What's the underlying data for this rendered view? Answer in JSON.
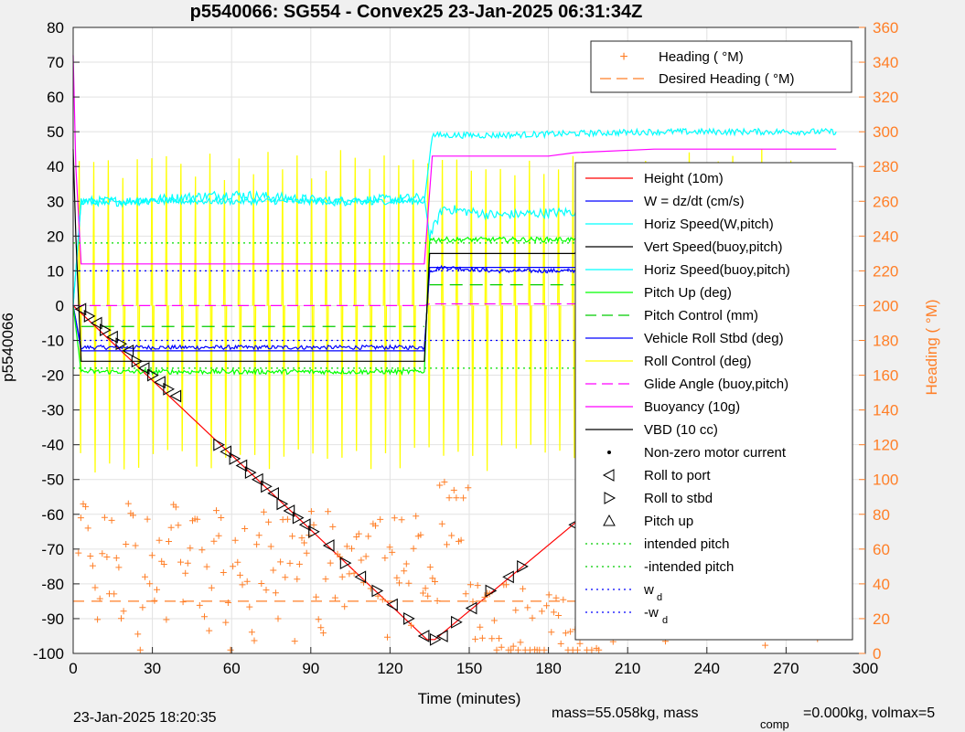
{
  "chart_data": {
    "type": "line",
    "title": "p5540066: SG554 - Convex25 23-Jan-2025 06:31:34Z",
    "xlabel": "Time (minutes)",
    "ylabel": "p5540066",
    "ylabel_right": "Heading (  °M)",
    "xlim": [
      0,
      300
    ],
    "ylim": [
      -100,
      80
    ],
    "ylim_right": [
      0,
      360
    ],
    "x_ticks": [
      0,
      30,
      60,
      90,
      120,
      150,
      180,
      210,
      240,
      270,
      300
    ],
    "y_ticks": [
      -100,
      -90,
      -80,
      -70,
      -60,
      -50,
      -40,
      -30,
      -20,
      -10,
      0,
      10,
      20,
      30,
      40,
      50,
      60,
      70,
      80
    ],
    "y_ticks_right": [
      0,
      20,
      40,
      60,
      80,
      100,
      120,
      140,
      160,
      180,
      200,
      220,
      240,
      260,
      280,
      300,
      320,
      340,
      360
    ],
    "grid": true,
    "legend_top": [
      "Heading (  °M)",
      "Desired Heading (  °M)"
    ],
    "legend_main": [
      "Height (10m)",
      "W = dz/dt (cm/s)",
      "Horiz Speed(W,pitch)",
      "Vert Speed(buoy,pitch)",
      "Horiz Speed(buoy,pitch)",
      "Pitch Up (deg)",
      "Pitch Control (mm)",
      "Vehicle Roll Stbd (deg)",
      "Roll Control (deg)",
      "Glide Angle (buoy,pitch)",
      "Buoyancy (10g)",
      "VBD (10 cc)",
      "Non-zero motor current",
      "Roll to port",
      "Roll to stbd",
      "Pitch up",
      "intended pitch",
      "-intended pitch",
      "w",
      "-w"
    ],
    "legend_sub": "d",
    "series": [
      {
        "name": "Height (10m)",
        "color": "#ff0000",
        "x": [
          0,
          134,
          137,
          289
        ],
        "y": [
          0,
          -96,
          -96,
          0
        ]
      },
      {
        "name": "W = dz/dt (cm/s)",
        "color": "#0000ff",
        "x": [
          0,
          3,
          20,
          60,
          100,
          133,
          135,
          140,
          160,
          190,
          240,
          289
        ],
        "y": [
          0,
          -12,
          -12,
          -12,
          -12,
          -12,
          10,
          11,
          10,
          10,
          10,
          10
        ]
      },
      {
        "name": "Horiz Speed(W,pitch)",
        "color": "#00ffff",
        "x": [
          0,
          3,
          20,
          60,
          100,
          133,
          135,
          140,
          160,
          190,
          240,
          289
        ],
        "y": [
          0,
          30,
          30,
          32,
          30,
          31,
          20,
          28,
          26,
          27,
          26,
          27
        ]
      },
      {
        "name": "Vert Speed(buoy,pitch)",
        "color": "#0000ff",
        "x": [
          0,
          3,
          133,
          135,
          289
        ],
        "y": [
          0,
          -13,
          -13,
          11,
          11
        ]
      },
      {
        "name": "Horiz Speed(buoy,pitch)",
        "color": "#00ffff",
        "x": [
          0,
          3,
          133,
          136,
          160,
          220,
          289
        ],
        "y": [
          0,
          30,
          30,
          49,
          49,
          50,
          50
        ]
      },
      {
        "name": "Pitch Up (deg)",
        "color": "#00ff00",
        "x": [
          0,
          3,
          133,
          135,
          289
        ],
        "y": [
          0,
          -19,
          -19,
          19,
          19
        ]
      },
      {
        "name": "Glide Angle (buoy,pitch)",
        "color": "#ff00ff",
        "x": [
          0,
          133,
          135,
          289
        ],
        "y": [
          0,
          0,
          0.5,
          0.5
        ]
      },
      {
        "name": "Buoyancy (10g)",
        "color": "#ff00ff",
        "x": [
          0,
          1,
          3,
          133,
          136,
          180,
          190,
          220,
          289
        ],
        "y": [
          72,
          40,
          12,
          12,
          43,
          43,
          44,
          45,
          45
        ]
      },
      {
        "name": "VBD (10 cc)",
        "color": "#000000",
        "x": [
          0,
          1,
          3,
          133,
          135,
          190,
          191,
          289
        ],
        "y": [
          45,
          20,
          -16,
          -16,
          15,
          15,
          17,
          17
        ]
      },
      {
        "name": "intended pitch",
        "color": "#00dd00",
        "x": [
          0,
          289
        ],
        "y": [
          18,
          18
        ]
      },
      {
        "name": "-intended pitch",
        "color": "#00dd00",
        "x": [
          0,
          289
        ],
        "y": [
          -18,
          -18
        ]
      },
      {
        "name": "w",
        "color": "#0000ff",
        "x": [
          0,
          289
        ],
        "y": [
          10,
          10
        ]
      },
      {
        "name": "-w",
        "color": "#0000ff",
        "x": [
          0,
          289
        ],
        "y": [
          -10,
          -10
        ]
      },
      {
        "name": "Desired Heading (  °M)",
        "color": "#ff7f27",
        "axis": "right",
        "x": [
          0,
          289
        ],
        "y": [
          30,
          30
        ]
      }
    ],
    "roll_markers": {
      "x": [
        3,
        6,
        9,
        12,
        15,
        18,
        21,
        24,
        27,
        30,
        33,
        36,
        39,
        55,
        58,
        61,
        64,
        67,
        70,
        73,
        76,
        79,
        82,
        85,
        88,
        91,
        97,
        103,
        109,
        115,
        121,
        127,
        133,
        137,
        140,
        145,
        151,
        158,
        165,
        170,
        190,
        194,
        197,
        200,
        203,
        206,
        222,
        225,
        228,
        231,
        234,
        237,
        240,
        243,
        246,
        249,
        252,
        255,
        258,
        261,
        264,
        267,
        270,
        273,
        276,
        279,
        282,
        285,
        288
      ],
      "y": [
        -1,
        -3,
        -5,
        -7,
        -9,
        -11,
        -13,
        -16,
        -18,
        -20,
        -22,
        -24,
        -26,
        -40,
        -42,
        -44,
        -46,
        -48,
        -50,
        -52,
        -54,
        -57,
        -59,
        -61,
        -63,
        -65,
        -69,
        -74,
        -78,
        -82,
        -86,
        -90,
        -95,
        -96,
        -95,
        -91,
        -87,
        -82,
        -78,
        -75,
        -63,
        -60,
        -58,
        -56,
        -54,
        -52,
        -42,
        -40,
        -38,
        -36,
        -34,
        -32,
        -30,
        -28,
        -26,
        -24,
        -22,
        -20,
        -18,
        -16,
        -14,
        -12,
        -10,
        -8,
        -6,
        -4,
        -3,
        -2,
        -1
      ]
    }
  },
  "footer": {
    "timestamp": "23-Jan-2025 18:20:35",
    "mass_text": "mass=55.058kg, mass",
    "comp_sub": "comp",
    "tail_text": "=0.000kg, volmax=5"
  }
}
